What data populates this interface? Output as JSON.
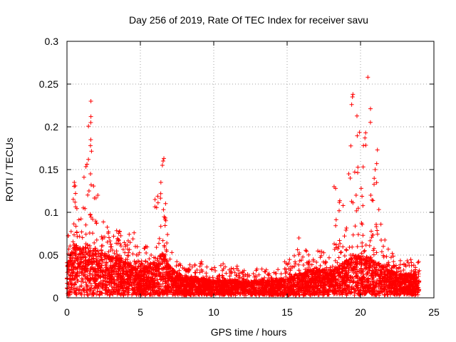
{
  "chart_data": {
    "type": "scatter",
    "title": "Day 256 of 2019, Rate Of TEC Index for receiver savu",
    "xlabel": "GPS time / hours",
    "ylabel": "ROTI / TECUs",
    "xlim": [
      0,
      25
    ],
    "ylim": [
      0,
      0.3
    ],
    "x_ticks": [
      0,
      5,
      10,
      15,
      20,
      25
    ],
    "x_tick_labels": [
      "0",
      "5",
      "10",
      "15",
      "20",
      "25"
    ],
    "y_ticks": [
      0,
      0.05,
      0.1,
      0.15,
      0.2,
      0.25,
      0.3
    ],
    "y_tick_labels": [
      "0",
      "0.05",
      "0.1",
      "0.15",
      "0.2",
      "0.25",
      "0.3"
    ],
    "grid": true,
    "marker": "+",
    "series": [
      {
        "name": "ROTI",
        "color": "#ff0000",
        "envelope_hours": [
          0,
          0.5,
          1,
          1.5,
          2,
          2.5,
          3,
          3.5,
          4,
          4.5,
          5,
          5.5,
          6,
          6.5,
          7,
          7.5,
          8,
          9,
          10,
          11,
          12,
          13,
          14,
          15,
          15.5,
          16,
          16.5,
          17,
          17.5,
          18,
          18.5,
          19,
          19.5,
          20,
          20.5,
          21,
          21.5,
          22,
          22.5,
          23,
          23.5,
          24
        ],
        "envelope_typical_roti": [
          0.035,
          0.06,
          0.055,
          0.06,
          0.055,
          0.05,
          0.045,
          0.045,
          0.04,
          0.035,
          0.03,
          0.035,
          0.04,
          0.05,
          0.035,
          0.025,
          0.02,
          0.02,
          0.018,
          0.018,
          0.017,
          0.017,
          0.018,
          0.02,
          0.025,
          0.025,
          0.03,
          0.03,
          0.03,
          0.03,
          0.035,
          0.04,
          0.05,
          0.045,
          0.045,
          0.04,
          0.035,
          0.03,
          0.025,
          0.025,
          0.025,
          0.025
        ],
        "envelope_max_roti": [
          0.065,
          0.135,
          0.1,
          0.23,
          0.12,
          0.09,
          0.085,
          0.08,
          0.07,
          0.085,
          0.05,
          0.075,
          0.115,
          0.165,
          0.06,
          0.045,
          0.035,
          0.045,
          0.04,
          0.04,
          0.035,
          0.035,
          0.035,
          0.045,
          0.05,
          0.07,
          0.05,
          0.055,
          0.055,
          0.055,
          0.13,
          0.1,
          0.24,
          0.19,
          0.26,
          0.175,
          0.08,
          0.055,
          0.05,
          0.045,
          0.045,
          0.045
        ],
        "spikes": [
          {
            "x": 0.5,
            "y": 0.135
          },
          {
            "x": 1.5,
            "y": 0.125
          },
          {
            "x": 1.6,
            "y": 0.145
          },
          {
            "x": 1.6,
            "y": 0.178
          },
          {
            "x": 1.62,
            "y": 0.185
          },
          {
            "x": 1.62,
            "y": 0.205
          },
          {
            "x": 1.63,
            "y": 0.212
          },
          {
            "x": 1.63,
            "y": 0.23
          },
          {
            "x": 2.1,
            "y": 0.12
          },
          {
            "x": 6.0,
            "y": 0.115
          },
          {
            "x": 6.4,
            "y": 0.135
          },
          {
            "x": 6.5,
            "y": 0.155
          },
          {
            "x": 6.55,
            "y": 0.16
          },
          {
            "x": 6.6,
            "y": 0.163
          },
          {
            "x": 15.8,
            "y": 0.07
          },
          {
            "x": 18.2,
            "y": 0.13
          },
          {
            "x": 18.3,
            "y": 0.128
          },
          {
            "x": 19.2,
            "y": 0.145
          },
          {
            "x": 19.3,
            "y": 0.14
          },
          {
            "x": 19.4,
            "y": 0.226
          },
          {
            "x": 19.45,
            "y": 0.235
          },
          {
            "x": 19.48,
            "y": 0.238
          },
          {
            "x": 19.7,
            "y": 0.12
          },
          {
            "x": 20.2,
            "y": 0.178
          },
          {
            "x": 20.3,
            "y": 0.187
          },
          {
            "x": 20.35,
            "y": 0.193
          },
          {
            "x": 20.5,
            "y": 0.258
          },
          {
            "x": 20.7,
            "y": 0.12
          },
          {
            "x": 21.0,
            "y": 0.15
          },
          {
            "x": 21.1,
            "y": 0.157
          },
          {
            "x": 21.15,
            "y": 0.173
          }
        ]
      }
    ]
  }
}
